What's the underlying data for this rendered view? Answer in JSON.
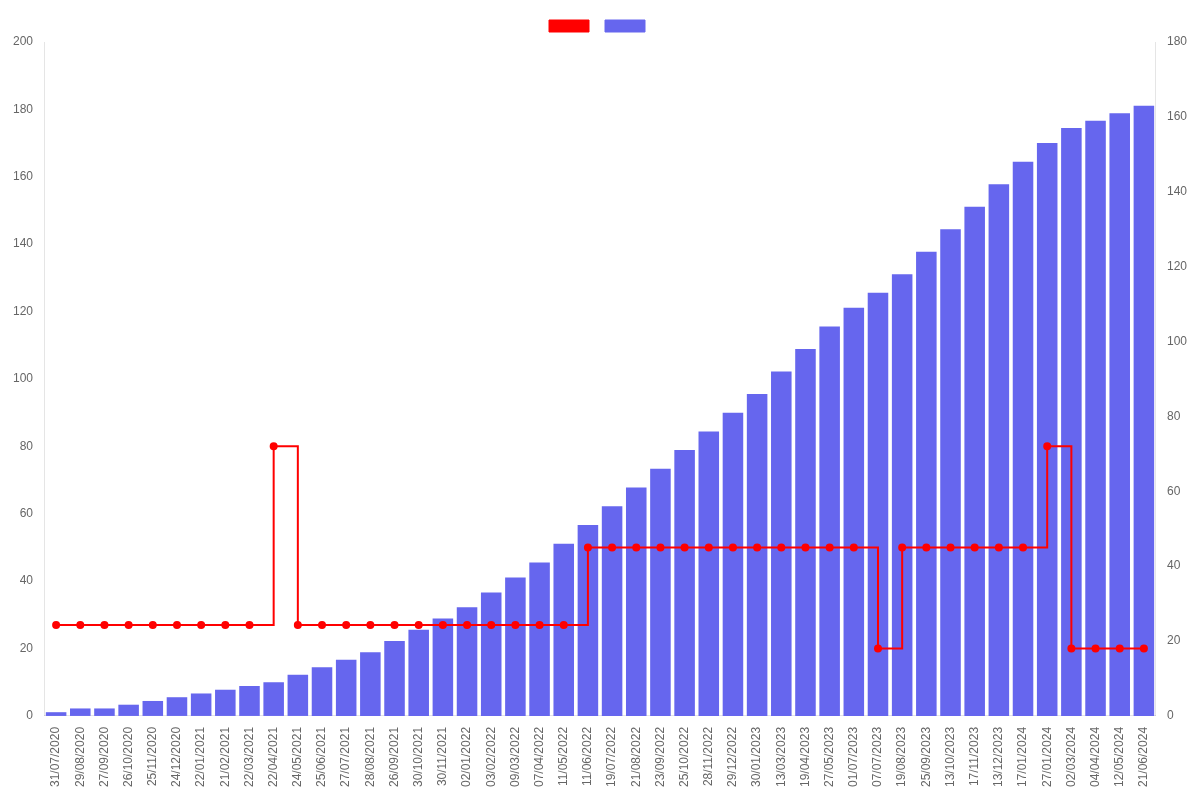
{
  "chart_data": {
    "type": "bar",
    "categories": [
      "31/07/2020",
      "29/08/2020",
      "27/09/2020",
      "26/10/2020",
      "25/11/2020",
      "24/12/2020",
      "22/01/2021",
      "21/02/2021",
      "22/03/2021",
      "22/04/2021",
      "24/05/2021",
      "25/06/2021",
      "27/07/2021",
      "28/08/2021",
      "26/09/2021",
      "30/10/2021",
      "30/11/2021",
      "02/01/2022",
      "03/02/2022",
      "09/03/2022",
      "07/04/2022",
      "11/05/2022",
      "11/06/2022",
      "19/07/2022",
      "21/08/2022",
      "23/09/2022",
      "25/10/2022",
      "28/11/2022",
      "29/12/2022",
      "30/01/2023",
      "13/03/2023",
      "19/04/2023",
      "27/05/2023",
      "01/07/2023",
      "07/07/2023",
      "19/08/2023",
      "25/09/2023",
      "13/10/2023",
      "17/11/2023",
      "13/12/2023",
      "17/01/2024",
      "27/01/2024",
      "02/03/2024",
      "04/04/2024",
      "12/05/2024",
      "21/06/2024"
    ],
    "series": [
      {
        "type": "line",
        "color": "#ff0000",
        "marker": "circle",
        "line_style": "step",
        "values": [
          27,
          27,
          27,
          27,
          27,
          27,
          27,
          27,
          27,
          80,
          27,
          27,
          27,
          27,
          27,
          27,
          27,
          27,
          27,
          27,
          27,
          27,
          50,
          50,
          50,
          50,
          50,
          50,
          50,
          50,
          50,
          50,
          50,
          50,
          20,
          50,
          50,
          50,
          50,
          50,
          50,
          80,
          20,
          20,
          20,
          20
        ]
      },
      {
        "type": "bar",
        "color": "#6666ee",
        "axis": "y2",
        "values": [
          1,
          2,
          2,
          3,
          4,
          5,
          6,
          7,
          8,
          9,
          11,
          13,
          15,
          17,
          20,
          23,
          26,
          29,
          33,
          37,
          41,
          46,
          51,
          56,
          61,
          66,
          71,
          76,
          81,
          86,
          92,
          98,
          104,
          109,
          113,
          118,
          124,
          130,
          136,
          142,
          148,
          153,
          157,
          159,
          161,
          163
        ]
      }
    ],
    "ylim": [
      0,
      200
    ],
    "yticks": [
      0,
      20,
      40,
      60,
      80,
      100,
      120,
      140,
      160,
      180,
      200
    ],
    "y2lim": [
      0,
      180
    ],
    "y2ticks": [
      0,
      20,
      40,
      60,
      80,
      100,
      120,
      140,
      160,
      180
    ],
    "grid": false,
    "legend": "top"
  }
}
